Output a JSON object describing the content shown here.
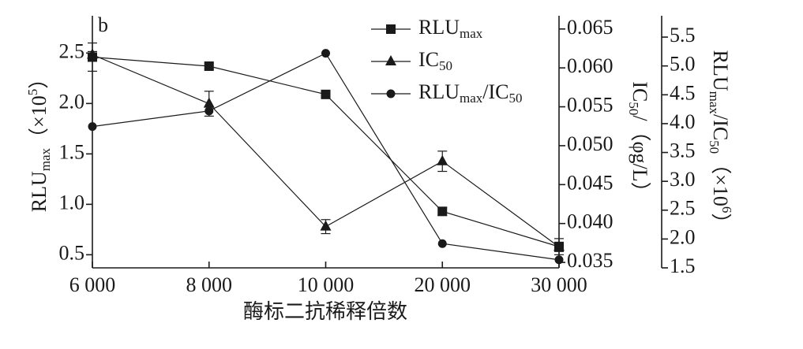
{
  "chart_data": {
    "type": "line",
    "panel_label": "b",
    "xlabel": "酶标二抗稀释倍数",
    "ylabel": [
      {
        "text": "RLU"
      },
      {
        "text": "max",
        "shift": "sub"
      },
      {
        "text": "（×10"
      },
      {
        "text": "5",
        "shift": "sup"
      },
      {
        "text": "）"
      }
    ],
    "y2label": [
      {
        "text": "IC"
      },
      {
        "text": "50",
        "shift": "sub"
      },
      {
        "text": "/（φg/L）"
      }
    ],
    "y3label": [
      {
        "text": "RLU"
      },
      {
        "text": "max",
        "shift": "sub"
      },
      {
        "text": "/IC"
      },
      {
        "text": "50",
        "shift": "sub"
      },
      {
        "text": "（×10"
      },
      {
        "text": "6",
        "shift": "sup"
      },
      {
        "text": "）"
      }
    ],
    "categories": [
      "6 000",
      "8 000",
      "10 000",
      "20 000",
      "30 000"
    ],
    "ylim": [
      0.37,
      2.87
    ],
    "yticks": [
      0.5,
      {
        "value": 1,
        "label": "1.0"
      },
      1.5,
      {
        "value": 2,
        "label": "2.0"
      },
      2.5
    ],
    "y2lim": [
      0.0343,
      0.0667
    ],
    "y2ticks": [
      0.035,
      {
        "value": 0.04,
        "label": "0.040"
      },
      0.045,
      {
        "value": 0.05,
        "label": "0.050"
      },
      0.055,
      {
        "value": 0.06,
        "label": "0.060"
      },
      0.065
    ],
    "y3lim": [
      1.5,
      5.87
    ],
    "y3ticks": [
      1.5,
      {
        "value": 2,
        "label": "2.0"
      },
      2.5,
      {
        "value": 3,
        "label": "3.0"
      },
      3.5,
      {
        "value": 4,
        "label": "4.0"
      },
      4.5,
      {
        "value": 5,
        "label": "5.0"
      },
      5.5
    ],
    "legend": "top",
    "series": [
      {
        "name": [
          {
            "text": "RLU"
          },
          {
            "text": "max",
            "shift": "sub"
          }
        ],
        "marker": "square",
        "color": "#1a1a1a",
        "values": [
          2.46,
          2.37,
          2.09,
          0.93,
          0.58
        ],
        "errors": [
          0.14,
          0.03,
          0.03,
          0.04,
          0.08
        ]
      },
      {
        "name": [
          {
            "text": "IC"
          },
          {
            "text": "50",
            "shift": "sub"
          }
        ],
        "marker": "triangle",
        "color": "#1a1a1a",
        "axis": "y2",
        "values": [
          0.0617,
          0.0554,
          0.0396,
          0.048,
          0.037
        ],
        "errors": [
          0.0004,
          0.0016,
          0.0009,
          0.0013,
          0.0006
        ]
      },
      {
        "name": [
          {
            "text": "RLU"
          },
          {
            "text": "max",
            "shift": "sub"
          },
          {
            "text": "/IC"
          },
          {
            "text": "50",
            "shift": "sub"
          }
        ],
        "marker": "circle",
        "color": "#1a1a1a",
        "axis": "y3",
        "values": [
          3.95,
          4.22,
          5.22,
          1.92,
          1.64
        ]
      }
    ]
  }
}
